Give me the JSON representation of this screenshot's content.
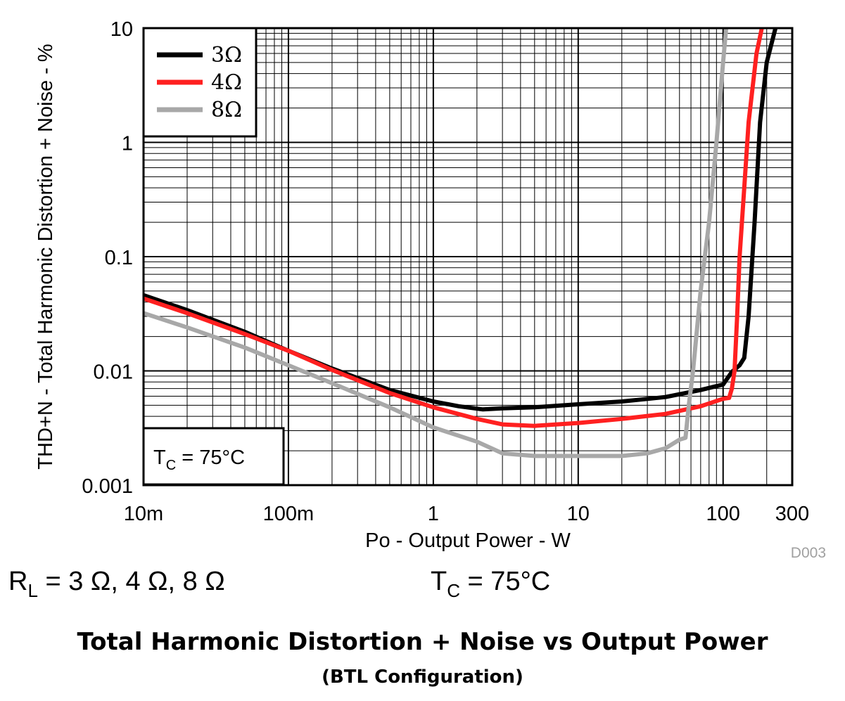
{
  "chart_data": {
    "type": "line",
    "title": "",
    "xlabel": "Po - Output Power - W",
    "ylabel": "THD+N - Total Harmonic Distortion + Noise - %",
    "xscale": "log",
    "yscale": "log",
    "xlim": [
      0.01,
      300
    ],
    "ylim": [
      0.001,
      10
    ],
    "grid": true,
    "legend_position": "top-left",
    "x_ticks": [
      {
        "value": 0.01,
        "label": "10m"
      },
      {
        "value": 0.1,
        "label": "100m"
      },
      {
        "value": 1,
        "label": "1"
      },
      {
        "value": 10,
        "label": "10"
      },
      {
        "value": 100,
        "label": "100"
      },
      {
        "value": 300,
        "label": "300"
      }
    ],
    "y_ticks": [
      {
        "value": 0.001,
        "label": "0.001"
      },
      {
        "value": 0.01,
        "label": "0.01"
      },
      {
        "value": 0.1,
        "label": "0.1"
      },
      {
        "value": 1,
        "label": "1"
      },
      {
        "value": 10,
        "label": "10"
      }
    ],
    "series": [
      {
        "name": "3Ω",
        "color": "#000000",
        "points": [
          [
            0.01,
            0.046
          ],
          [
            0.02,
            0.034
          ],
          [
            0.05,
            0.022
          ],
          [
            0.1,
            0.015
          ],
          [
            0.2,
            0.0105
          ],
          [
            0.5,
            0.0068
          ],
          [
            1,
            0.0054
          ],
          [
            1.5,
            0.0049
          ],
          [
            2.2,
            0.0046
          ],
          [
            3,
            0.0047
          ],
          [
            5,
            0.0048
          ],
          [
            10,
            0.0051
          ],
          [
            20,
            0.0054
          ],
          [
            40,
            0.0059
          ],
          [
            70,
            0.0068
          ],
          [
            100,
            0.0076
          ],
          [
            115,
            0.0098
          ],
          [
            130,
            0.0112
          ],
          [
            140,
            0.013
          ],
          [
            150,
            0.03
          ],
          [
            165,
            0.2
          ],
          [
            180,
            1.5
          ],
          [
            200,
            5
          ],
          [
            230,
            10
          ]
        ]
      },
      {
        "name": "4Ω",
        "color": "#ff2020",
        "points": [
          [
            0.01,
            0.043
          ],
          [
            0.02,
            0.032
          ],
          [
            0.05,
            0.021
          ],
          [
            0.1,
            0.015
          ],
          [
            0.2,
            0.0102
          ],
          [
            0.5,
            0.0064
          ],
          [
            1,
            0.0048
          ],
          [
            2,
            0.0038
          ],
          [
            3,
            0.0034
          ],
          [
            5,
            0.0033
          ],
          [
            10,
            0.0035
          ],
          [
            20,
            0.0038
          ],
          [
            40,
            0.0042
          ],
          [
            70,
            0.0049
          ],
          [
            100,
            0.0057
          ],
          [
            110,
            0.0058
          ],
          [
            115,
            0.007
          ],
          [
            120,
            0.01
          ],
          [
            125,
            0.03
          ],
          [
            130,
            0.1
          ],
          [
            140,
            0.4
          ],
          [
            150,
            1.5
          ],
          [
            170,
            6
          ],
          [
            185,
            10
          ]
        ]
      },
      {
        "name": "8Ω",
        "color": "#a8a8a8",
        "points": [
          [
            0.01,
            0.032
          ],
          [
            0.02,
            0.024
          ],
          [
            0.05,
            0.016
          ],
          [
            0.1,
            0.0112
          ],
          [
            0.2,
            0.0078
          ],
          [
            0.5,
            0.0048
          ],
          [
            1,
            0.0032
          ],
          [
            2,
            0.0024
          ],
          [
            3,
            0.0019
          ],
          [
            5,
            0.0018
          ],
          [
            10,
            0.0018
          ],
          [
            20,
            0.0018
          ],
          [
            30,
            0.0019
          ],
          [
            40,
            0.0021
          ],
          [
            50,
            0.0025
          ],
          [
            55,
            0.0026
          ],
          [
            58,
            0.005
          ],
          [
            62,
            0.01
          ],
          [
            70,
            0.05
          ],
          [
            80,
            0.2
          ],
          [
            90,
            1
          ],
          [
            100,
            5
          ],
          [
            105,
            10
          ]
        ]
      }
    ],
    "annotations": [
      "T_C = 75°C"
    ]
  },
  "figure_id": "D003",
  "conditions": {
    "rl_main": "R",
    "rl_sub": "L",
    "rl_values": " = 3 Ω, 4 Ω, 8 Ω",
    "tc_main": "T",
    "tc_sub": "C",
    "tc_values": " = 75°C"
  },
  "inset": {
    "main": "T",
    "sub": "C",
    "rest": " = 75°C"
  },
  "caption": {
    "title": "Total Harmonic Distortion + Noise vs Output Power",
    "subtitle": "(BTL Configuration)"
  }
}
